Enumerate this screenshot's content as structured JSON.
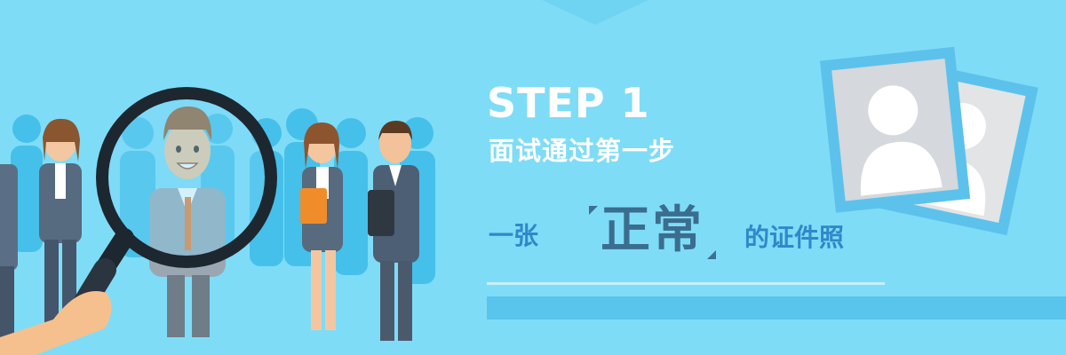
{
  "banner": {
    "step_label": "STEP 1",
    "subtitle": "面试通过第一步",
    "line_prefix": "一张",
    "line_emphasis": "正常",
    "line_suffix": "的证件照"
  },
  "colors": {
    "background": "#7fdcf7",
    "accent_blue": "#2f88c9",
    "emphasis": "#3a6d8e",
    "bar": "#59c4ec",
    "silhouette": "#45c0ea",
    "frame_blue": "#5cc2ec"
  },
  "icons": {
    "magnifier": "magnifying-glass-icon",
    "photo": "id-photo-placeholder-icon"
  }
}
